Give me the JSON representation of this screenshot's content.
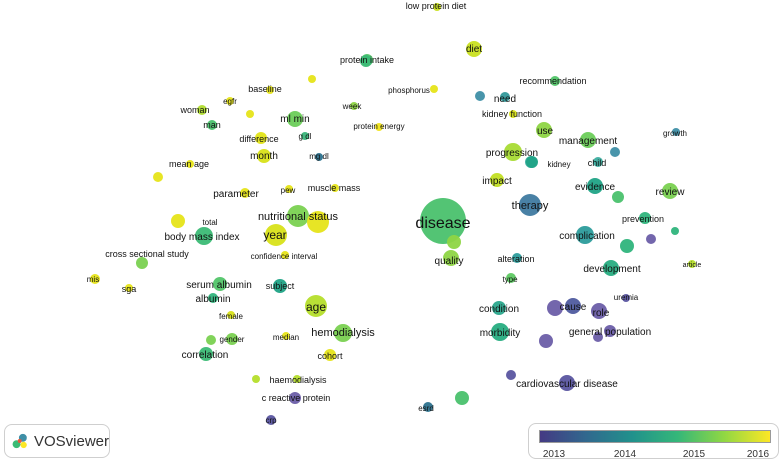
{
  "app": {
    "name": "VOSviewer"
  },
  "legend": {
    "ticks": [
      "2013",
      "2014",
      "2015",
      "2016"
    ],
    "gradient": [
      "#443a83",
      "#31688e",
      "#21918c",
      "#35b779",
      "#90d743",
      "#fde725"
    ]
  },
  "nodes": [
    {
      "label": "low protein diet",
      "color": "#c9e020"
    },
    {
      "label": "diet",
      "color": "#c9e020"
    },
    {
      "label": "protein intake",
      "color": "#52c569"
    },
    {
      "label": "phosphorus",
      "color": "#e6e419"
    },
    {
      "label": "baseline",
      "color": "#e6e419"
    },
    {
      "label": "egfr",
      "color": "#e6e419"
    },
    {
      "label": "woman",
      "color": "#b0dc2f"
    },
    {
      "label": "man",
      "color": "#4ac16d"
    },
    {
      "label": "ml min",
      "color": "#6ccd5a"
    },
    {
      "label": "week",
      "color": "#8ed544"
    },
    {
      "label": "g dl",
      "color": "#3ab57a"
    },
    {
      "label": "protein energy",
      "color": "#f0e41b"
    },
    {
      "label": "difference",
      "color": "#e2e418"
    },
    {
      "label": "month",
      "color": "#d8e219"
    },
    {
      "label": "mg dl",
      "color": "#2c728e"
    },
    {
      "label": "mean age",
      "color": "#e6e419"
    },
    {
      "label": "parameter",
      "color": "#e6e419"
    },
    {
      "label": "pew",
      "color": "#e6e419"
    },
    {
      "label": "muscle mass",
      "color": "#e6e419"
    },
    {
      "label": "nutritional status",
      "color": "#7ad151"
    },
    {
      "label": "total",
      "color": "#e6e419"
    },
    {
      "label": "year",
      "color": "#d8e219"
    },
    {
      "label": "body mass index",
      "color": "#3bbb75"
    },
    {
      "label": "confidence interval",
      "color": "#e6e419"
    },
    {
      "label": "cross sectional study",
      "color": "#7ad151"
    },
    {
      "label": "mis",
      "color": "#e6e419"
    },
    {
      "label": "sga",
      "color": "#e6e419"
    },
    {
      "label": "serum albumin",
      "color": "#52c569"
    },
    {
      "label": "albumin",
      "color": "#2fb47c"
    },
    {
      "label": "subject",
      "color": "#20a386"
    },
    {
      "label": "age",
      "color": "#b5de2b"
    },
    {
      "label": "female",
      "color": "#d8e219"
    },
    {
      "label": "hemodialysis",
      "color": "#7ad151"
    },
    {
      "label": "gender",
      "color": "#7ad151"
    },
    {
      "label": "median",
      "color": "#e6e419"
    },
    {
      "label": "correlation",
      "color": "#3bbb75"
    },
    {
      "label": "cohort",
      "color": "#e6e419"
    },
    {
      "label": "haemodialysis",
      "color": "#b5de2b"
    },
    {
      "label": "c reactive protein",
      "color": "#6b5ea8"
    },
    {
      "label": "crp",
      "color": "#5a55a0"
    },
    {
      "label": "disease",
      "color": "#4ac16d"
    },
    {
      "label": "quality",
      "color": "#8ed544"
    },
    {
      "label": "esrd",
      "color": "#2c728e"
    },
    {
      "label": "recommendation",
      "color": "#52c569"
    },
    {
      "label": "need",
      "color": "#31999a"
    },
    {
      "label": "kidney function",
      "color": "#d8e219"
    },
    {
      "label": "use",
      "color": "#8ed544"
    },
    {
      "label": "management",
      "color": "#6ccd5a"
    },
    {
      "label": "growth",
      "color": "#3f8fa6"
    },
    {
      "label": "progression",
      "color": "#a8db34"
    },
    {
      "label": "kidney",
      "color": "#3baea0"
    },
    {
      "label": "child",
      "color": "#3baea0"
    },
    {
      "label": "impact",
      "color": "#c2df23"
    },
    {
      "label": "evidence",
      "color": "#20a386"
    },
    {
      "label": "review",
      "color": "#7ad151"
    },
    {
      "label": "therapy",
      "color": "#3f7aa0"
    },
    {
      "label": "prevention",
      "color": "#2fb47c"
    },
    {
      "label": "complication",
      "color": "#2c9c9b"
    },
    {
      "label": "alteration",
      "color": "#2c9c9b"
    },
    {
      "label": "development",
      "color": "#27ad81"
    },
    {
      "label": "article",
      "color": "#b5de2b"
    },
    {
      "label": "type",
      "color": "#5ec962"
    },
    {
      "label": "uremia",
      "color": "#5a55a0"
    },
    {
      "label": "cause",
      "color": "#4f5b9f"
    },
    {
      "label": "role",
      "color": "#6b5ea8"
    },
    {
      "label": "condition",
      "color": "#2aa68c"
    },
    {
      "label": "general population",
      "color": "#6b5ea8"
    },
    {
      "label": "morbidity",
      "color": "#27ad81"
    },
    {
      "label": "cardiovascular disease",
      "color": "#5a55a0"
    },
    {
      "label": "",
      "color": "#3bbb75"
    },
    {
      "label": "",
      "color": "#e6e419"
    },
    {
      "label": "",
      "color": "#e6e419"
    },
    {
      "label": "",
      "color": "#e6e419"
    },
    {
      "label": "",
      "color": "#e6e419"
    },
    {
      "label": "",
      "color": "#8ed544"
    },
    {
      "label": "",
      "color": "#3f8fa6"
    },
    {
      "label": "",
      "color": "#20a386"
    },
    {
      "label": "",
      "color": "#4ac16d"
    },
    {
      "label": "",
      "color": "#3f8fa6"
    },
    {
      "label": "",
      "color": "#2fb47c"
    },
    {
      "label": "",
      "color": "#6b5ea8"
    },
    {
      "label": "",
      "color": "#6b5ea8"
    },
    {
      "label": "",
      "color": "#6b5ea8"
    },
    {
      "label": "",
      "color": "#5a55a0"
    },
    {
      "label": "",
      "color": "#4ac16d"
    },
    {
      "label": "",
      "color": "#b5de2b"
    },
    {
      "label": "",
      "color": "#7ad151"
    },
    {
      "label": "",
      "color": "#6b5ea8"
    },
    {
      "label": "",
      "color": "#2fb47c"
    }
  ]
}
